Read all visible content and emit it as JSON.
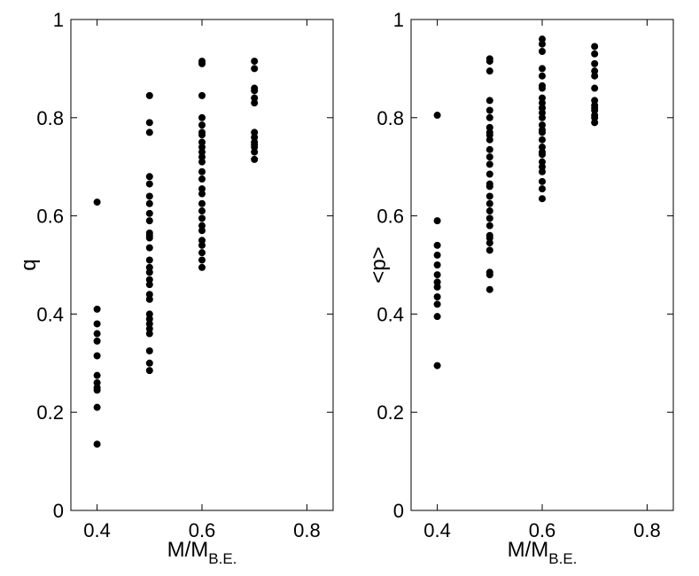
{
  "chart_data": [
    {
      "type": "scatter",
      "title": "",
      "xlabel": "M/M",
      "xlabel_subscript": "B.E.",
      "ylabel": "q",
      "xlim": [
        0.35,
        0.85
      ],
      "ylim": [
        0,
        1
      ],
      "xticks": [
        "0.4",
        "0.6",
        "0.8"
      ],
      "yticks": [
        "0",
        "0.2",
        "0.4",
        "0.6",
        "0.8",
        "1"
      ],
      "marker_color": "#000000",
      "series": [
        {
          "x": [
            0.4,
            0.4,
            0.4,
            0.4,
            0.4,
            0.4,
            0.4,
            0.4,
            0.4,
            0.4,
            0.4,
            0.4,
            0.5,
            0.5,
            0.5,
            0.5,
            0.5,
            0.5,
            0.5,
            0.5,
            0.5,
            0.5,
            0.5,
            0.5,
            0.5,
            0.5,
            0.5,
            0.5,
            0.5,
            0.5,
            0.5,
            0.5,
            0.5,
            0.5,
            0.5,
            0.5,
            0.5,
            0.5,
            0.5,
            0.5,
            0.6,
            0.6,
            0.6,
            0.6,
            0.6,
            0.6,
            0.6,
            0.6,
            0.6,
            0.6,
            0.6,
            0.6,
            0.6,
            0.6,
            0.6,
            0.6,
            0.6,
            0.6,
            0.6,
            0.6,
            0.6,
            0.6,
            0.6,
            0.6,
            0.6,
            0.6,
            0.7,
            0.7,
            0.7,
            0.7,
            0.7,
            0.7,
            0.7,
            0.7,
            0.7,
            0.7,
            0.7,
            0.7,
            0.7
          ],
          "y": [
            0.628,
            0.41,
            0.38,
            0.36,
            0.345,
            0.315,
            0.275,
            0.26,
            0.25,
            0.245,
            0.21,
            0.135,
            0.845,
            0.79,
            0.77,
            0.68,
            0.665,
            0.64,
            0.625,
            0.605,
            0.59,
            0.565,
            0.555,
            0.535,
            0.51,
            0.485,
            0.47,
            0.46,
            0.44,
            0.43,
            0.4,
            0.39,
            0.38,
            0.37,
            0.325,
            0.3,
            0.285,
            0.56,
            0.495,
            0.36,
            0.915,
            0.91,
            0.845,
            0.8,
            0.785,
            0.75,
            0.74,
            0.73,
            0.71,
            0.69,
            0.675,
            0.655,
            0.645,
            0.625,
            0.595,
            0.58,
            0.57,
            0.55,
            0.54,
            0.525,
            0.51,
            0.495,
            0.77,
            0.765,
            0.61,
            0.72,
            0.915,
            0.9,
            0.86,
            0.855,
            0.84,
            0.83,
            0.77,
            0.76,
            0.75,
            0.745,
            0.74,
            0.73,
            0.715
          ]
        }
      ]
    },
    {
      "type": "scatter",
      "title": "",
      "xlabel": "M/M",
      "xlabel_subscript": "B.E.",
      "ylabel": "<p>",
      "xlim": [
        0.35,
        0.85
      ],
      "ylim": [
        0,
        1
      ],
      "xticks": [
        "0.4",
        "0.6",
        "0.8"
      ],
      "yticks": [
        "0",
        "0.2",
        "0.4",
        "0.6",
        "0.8",
        "1"
      ],
      "marker_color": "#000000",
      "series": [
        {
          "x": [
            0.4,
            0.4,
            0.4,
            0.4,
            0.4,
            0.4,
            0.4,
            0.4,
            0.4,
            0.4,
            0.4,
            0.4,
            0.5,
            0.5,
            0.5,
            0.5,
            0.5,
            0.5,
            0.5,
            0.5,
            0.5,
            0.5,
            0.5,
            0.5,
            0.5,
            0.5,
            0.5,
            0.5,
            0.5,
            0.5,
            0.5,
            0.5,
            0.5,
            0.5,
            0.5,
            0.5,
            0.5,
            0.5,
            0.5,
            0.5,
            0.6,
            0.6,
            0.6,
            0.6,
            0.6,
            0.6,
            0.6,
            0.6,
            0.6,
            0.6,
            0.6,
            0.6,
            0.6,
            0.6,
            0.6,
            0.6,
            0.6,
            0.6,
            0.6,
            0.6,
            0.6,
            0.6,
            0.6,
            0.6,
            0.6,
            0.6,
            0.7,
            0.7,
            0.7,
            0.7,
            0.7,
            0.7,
            0.7,
            0.7,
            0.7,
            0.7,
            0.7,
            0.7,
            0.7
          ],
          "y": [
            0.805,
            0.59,
            0.54,
            0.52,
            0.5,
            0.48,
            0.465,
            0.455,
            0.435,
            0.42,
            0.395,
            0.295,
            0.92,
            0.915,
            0.895,
            0.835,
            0.815,
            0.8,
            0.78,
            0.77,
            0.755,
            0.735,
            0.72,
            0.705,
            0.685,
            0.665,
            0.64,
            0.625,
            0.61,
            0.595,
            0.58,
            0.56,
            0.545,
            0.53,
            0.485,
            0.48,
            0.45,
            0.765,
            0.66,
            0.555,
            0.96,
            0.95,
            0.935,
            0.9,
            0.885,
            0.86,
            0.84,
            0.83,
            0.82,
            0.81,
            0.8,
            0.785,
            0.77,
            0.755,
            0.74,
            0.725,
            0.71,
            0.69,
            0.67,
            0.655,
            0.635,
            0.865,
            0.775,
            0.73,
            0.7,
            0.82,
            0.945,
            0.93,
            0.91,
            0.895,
            0.885,
            0.86,
            0.835,
            0.825,
            0.82,
            0.815,
            0.805,
            0.8,
            0.79
          ]
        }
      ]
    }
  ]
}
